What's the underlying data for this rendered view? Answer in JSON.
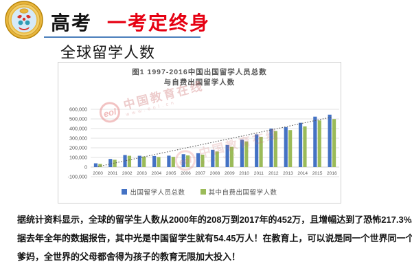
{
  "header": {
    "title_black": "高考",
    "title_red": "一考定终身",
    "logo_name": "school-badge"
  },
  "section": {
    "title": "全球留学人数"
  },
  "chart": {
    "title_line1": "图1  1997-2016中国出国留学人员总数",
    "title_line2": "与自费出国留学人数",
    "watermark": {
      "logo_text": "eol",
      "text": "中国教育在线",
      "url": "www.eol.cn"
    }
  },
  "chart_data": {
    "type": "bar",
    "title": "图1 1997-2016中国出国留学人员总数与自费出国留学人数",
    "categories": [
      "2000",
      "2001",
      "2002",
      "2003",
      "2004",
      "2005",
      "2006",
      "2007",
      "2008",
      "2009",
      "2010",
      "2011",
      "2012",
      "2013",
      "2014",
      "2015",
      "2016"
    ],
    "series": [
      {
        "name": "出国留学人员总数",
        "color": "#4472C4",
        "values": [
          39000,
          84000,
          125000,
          117300,
          114700,
          118500,
          134000,
          144000,
          179800,
          229300,
          284700,
          339700,
          399600,
          413900,
          459800,
          523700,
          544500
        ]
      },
      {
        "name": "其中自费出国留学人数",
        "color": "#9BBB59",
        "values": [
          32300,
          76000,
          117300,
          109200,
          104900,
          106500,
          121000,
          129000,
          161600,
          210100,
          266100,
          314800,
          374500,
          384300,
          423000,
          484500,
          498200
        ]
      }
    ],
    "trendline": {
      "type": "linear",
      "style": "dotted",
      "from_value": 5000,
      "to_value": 520000,
      "color": "#595959"
    },
    "xlabel": "",
    "ylabel": "",
    "ylim": [
      -100000,
      600000
    ],
    "ytick_step": 100000,
    "ytick_labels": [
      "600,000",
      "500,000",
      "400,000",
      "300,000",
      "200,000",
      "100,000",
      "0",
      "-100,000"
    ],
    "grid": true,
    "legend_position": "bottom",
    "colors": {
      "gridline": "#d9d9d9",
      "baseline": "#c0c0c0",
      "tick_text": "#595959"
    }
  },
  "body": {
    "lines": [
      "据统计资料显示，全球的留学生人数从2000年的208万到2017年的452万，且增幅达到了恐怖217.3%。",
      "据去年全年的数据报告，其中光是中国留学生就有54.45万人！在教育上，可以说是同一个世界同一个",
      "爹妈，全世界的父母都舍得为孩子的教育无限加大投入！"
    ]
  }
}
